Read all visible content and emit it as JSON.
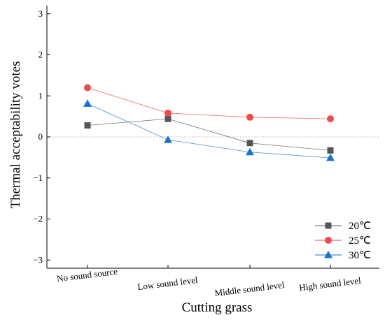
{
  "chart_data": {
    "type": "line",
    "categories": [
      "No sound source",
      "Low sound level",
      "Middle sound level",
      "High sound level"
    ],
    "xlabel": "Cutting grass",
    "ylabel": "Thermal acceptability votes",
    "ylim": [
      -3.2,
      3.2
    ],
    "yticks": [
      3,
      2,
      1,
      0,
      -1,
      -2,
      -3
    ],
    "reference_line": 0,
    "legend_position": "bottom-right",
    "series": [
      {
        "name": "20℃",
        "values": [
          0.28,
          0.44,
          -0.15,
          -0.33
        ],
        "color": "#555555",
        "marker": "square"
      },
      {
        "name": "25℃",
        "values": [
          1.2,
          0.58,
          0.48,
          0.44
        ],
        "color": "#f04a4a",
        "marker": "circle"
      },
      {
        "name": "30℃",
        "values": [
          0.81,
          -0.07,
          -0.37,
          -0.51
        ],
        "color": "#1a72cc",
        "marker": "triangle"
      }
    ]
  }
}
